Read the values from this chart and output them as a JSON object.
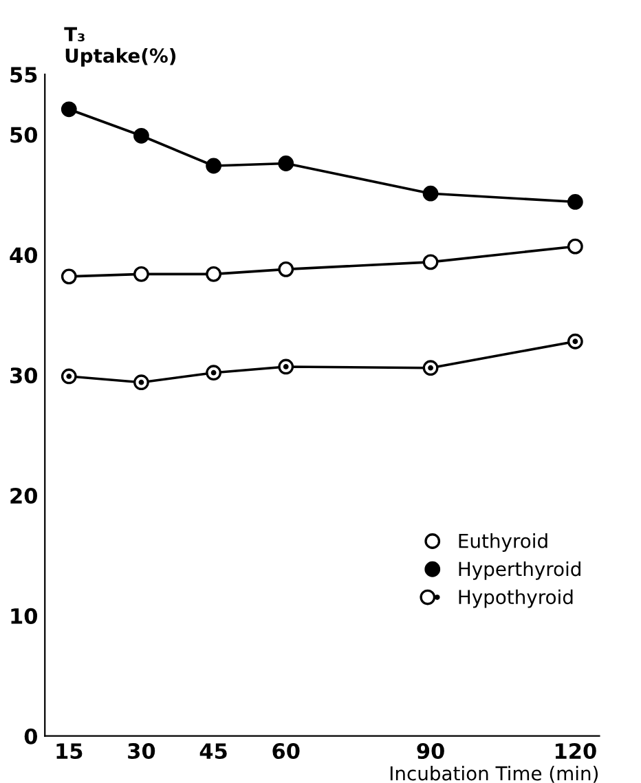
{
  "chart_data": {
    "type": "line",
    "ylabel": "T₃\nUptake(%)",
    "xlabel": "Incubation Time (min)",
    "x": [
      15,
      30,
      45,
      60,
      90,
      120
    ],
    "xlim": [
      10,
      125
    ],
    "xticks": [
      15,
      30,
      45,
      60,
      90,
      120
    ],
    "ylim": [
      0,
      55
    ],
    "yticks": [
      0,
      10,
      20,
      30,
      40,
      50,
      55
    ],
    "series": [
      {
        "name": "Euthyroid",
        "color": "#000000",
        "marker": "open circle",
        "values": [
          38.2,
          38.4,
          38.4,
          38.8,
          39.4,
          40.7
        ]
      },
      {
        "name": "Hyperthyroid",
        "color": "#000000",
        "marker": "circle",
        "values": [
          52.1,
          49.9,
          47.4,
          47.6,
          45.1,
          44.4
        ]
      },
      {
        "name": "Hypothyroid",
        "color": "#000000",
        "marker": "dotted circle",
        "values": [
          29.9,
          29.4,
          30.2,
          30.7,
          30.6,
          32.8
        ]
      }
    ],
    "legend": "center right",
    "grid": false,
    "line_style": "solid"
  }
}
